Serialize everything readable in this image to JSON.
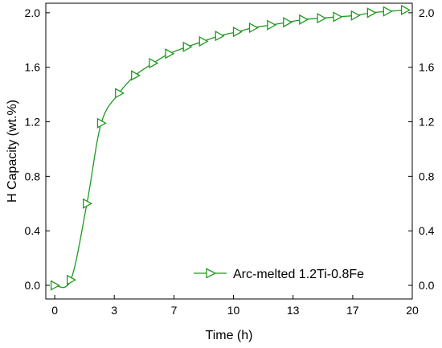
{
  "chart_data": {
    "type": "line",
    "xlabel": "Time (h)",
    "ylabel": "H Capacity (wt.%)",
    "xlim": [
      -0.5,
      20
    ],
    "ylim": [
      -0.1,
      2.07
    ],
    "xticks": [
      "0",
      "3",
      "7",
      "10",
      "13",
      "17",
      "20"
    ],
    "xtick_values": [
      0,
      3.33,
      6.67,
      10,
      13.33,
      16.67,
      20
    ],
    "yticks": [
      "0.0",
      "0.4",
      "0.8",
      "1.2",
      "1.6",
      "2.0"
    ],
    "ytick_values": [
      0,
      0.4,
      0.8,
      1.2,
      1.6,
      2.0
    ],
    "right_axis_mirrored": true,
    "grid": false,
    "legend_position": "bottom-right",
    "color": "#1e9a1e",
    "marker": "right-pointing open triangle",
    "series": [
      {
        "name": "Arc-melted 1.2Ti-0.8Fe",
        "x": [
          0,
          0.9,
          1.8,
          2.6,
          3.6,
          4.5,
          5.5,
          6.4,
          7.4,
          8.3,
          9.2,
          10.2,
          11.1,
          12.1,
          13.0,
          13.9,
          14.9,
          15.8,
          16.8,
          17.7,
          18.6,
          19.6
        ],
        "y": [
          0.0,
          0.04,
          0.6,
          1.19,
          1.41,
          1.54,
          1.63,
          1.7,
          1.75,
          1.79,
          1.83,
          1.86,
          1.89,
          1.91,
          1.93,
          1.95,
          1.96,
          1.97,
          1.98,
          2.0,
          2.01,
          2.02
        ]
      }
    ]
  }
}
